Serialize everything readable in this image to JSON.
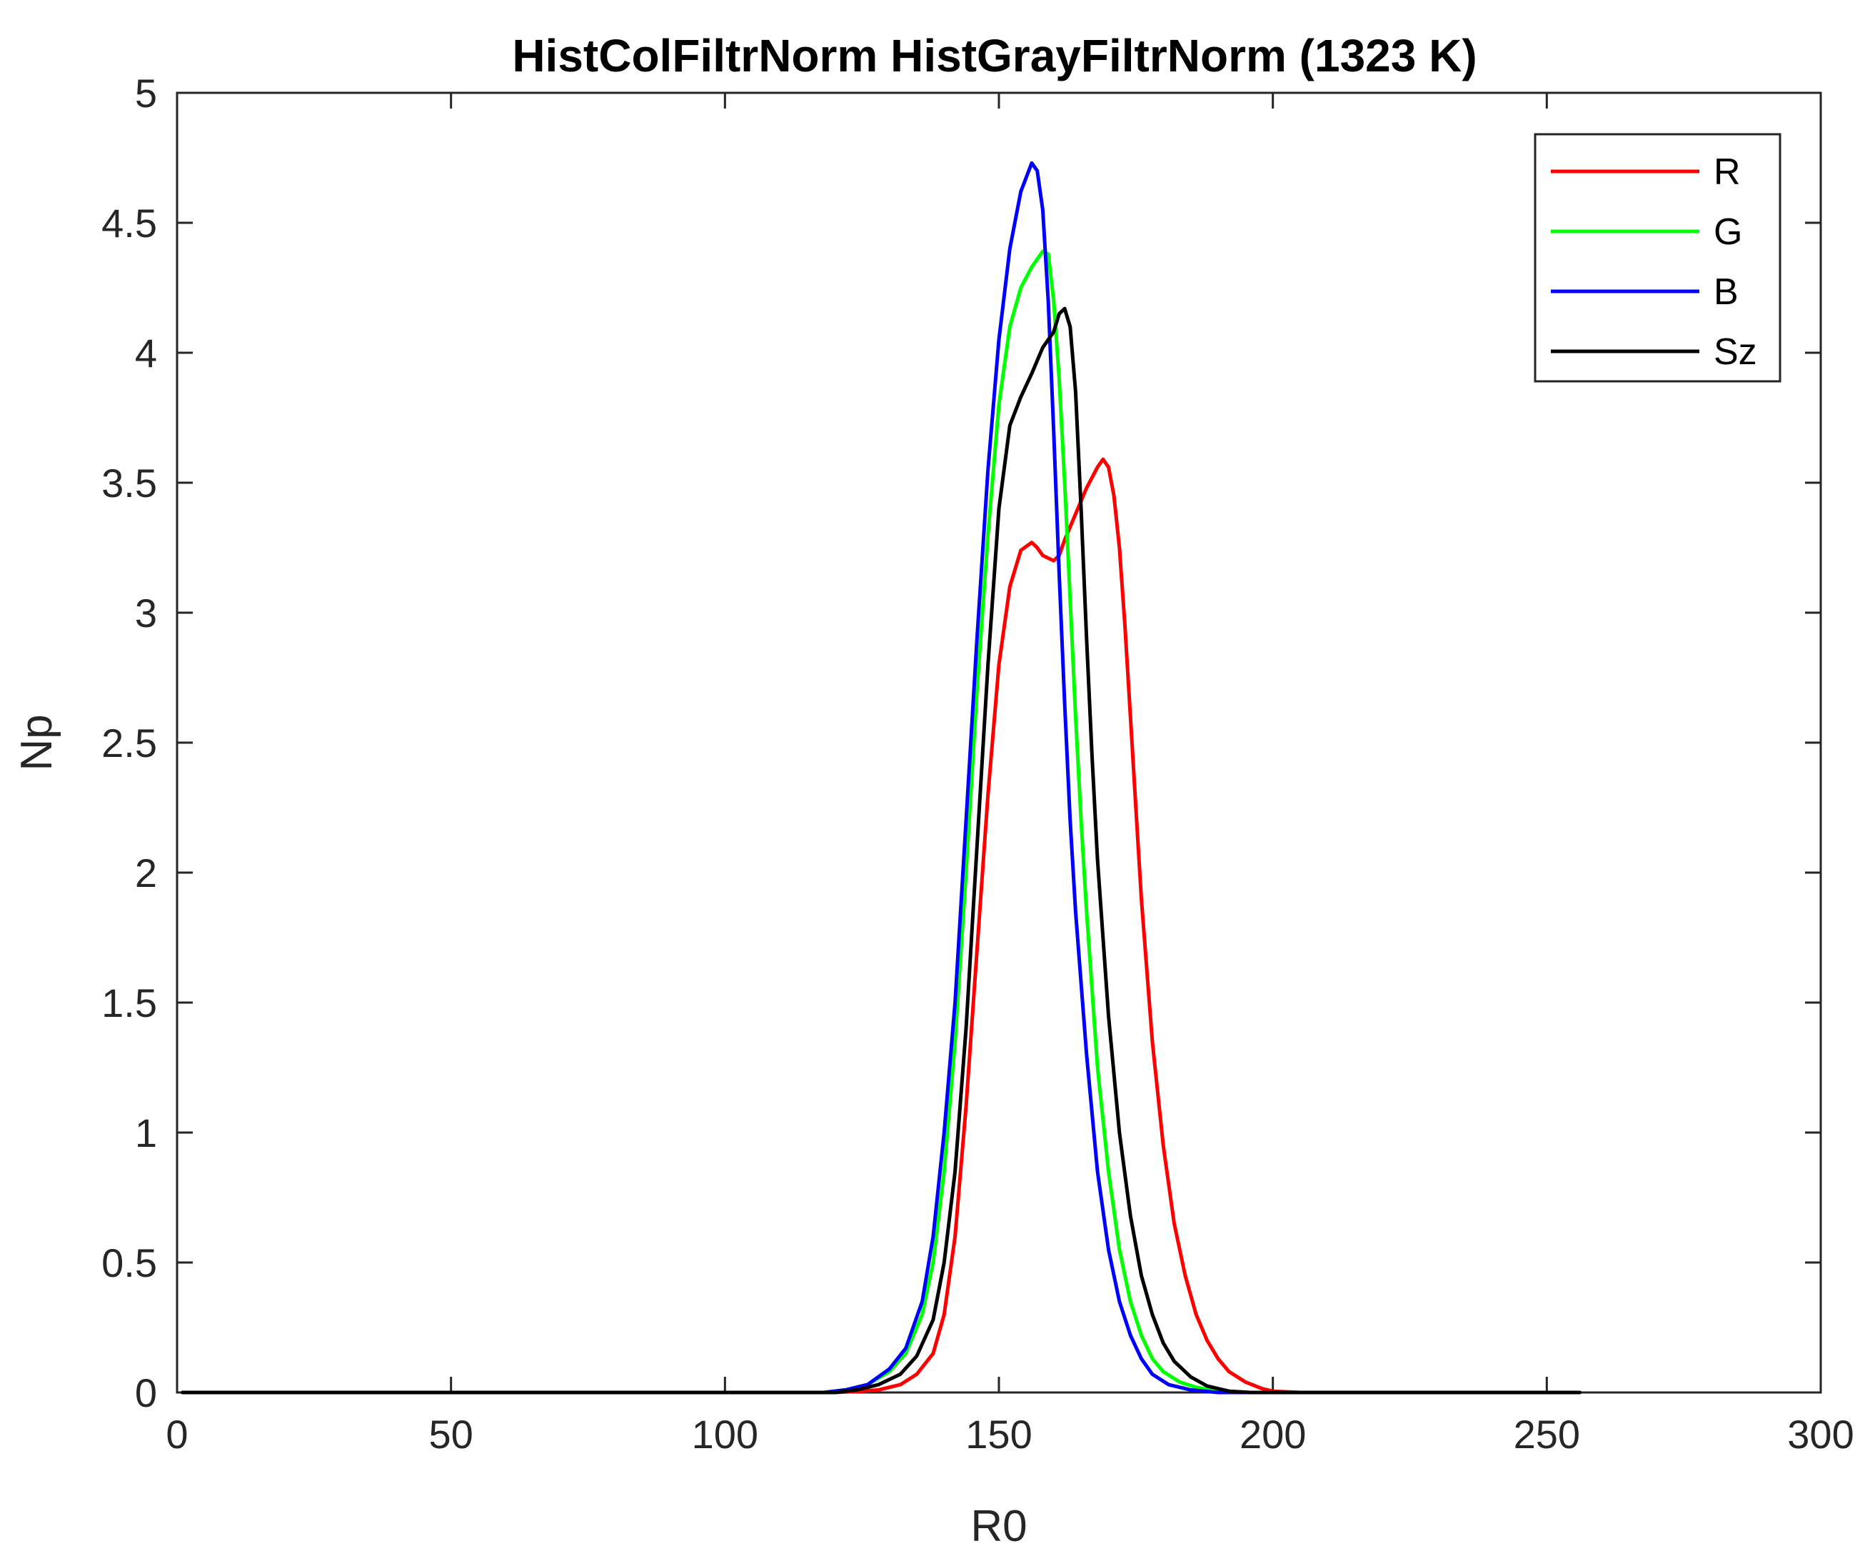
{
  "chart_data": {
    "type": "line",
    "title": "HistColFiltrNorm  HistGrayFiltrNorm (1323 K)",
    "xlabel": "R0",
    "ylabel": "Np",
    "xlim": [
      0,
      300
    ],
    "ylim": [
      0,
      5
    ],
    "xticks": [
      0,
      50,
      100,
      150,
      200,
      250,
      300
    ],
    "yticks": [
      0,
      0.5,
      1,
      1.5,
      2,
      2.5,
      3,
      3.5,
      4,
      4.5,
      5
    ],
    "xtick_labels": [
      "0",
      "50",
      "100",
      "150",
      "200",
      "250",
      "300"
    ],
    "ytick_labels": [
      "0",
      "0.5",
      "1",
      "1.5",
      "2",
      "2.5",
      "3",
      "3.5",
      "4",
      "4.5",
      "5"
    ],
    "grid": false,
    "legend_position": "top-right",
    "series": [
      {
        "name": "R",
        "color": "#ff0000",
        "points": [
          [
            1,
            0
          ],
          [
            120,
            0
          ],
          [
            125,
            0.005
          ],
          [
            128,
            0.01
          ],
          [
            132,
            0.03
          ],
          [
            135,
            0.07
          ],
          [
            138,
            0.15
          ],
          [
            140,
            0.3
          ],
          [
            142,
            0.6
          ],
          [
            144,
            1.1
          ],
          [
            146,
            1.7
          ],
          [
            148,
            2.3
          ],
          [
            150,
            2.8
          ],
          [
            152,
            3.1
          ],
          [
            154,
            3.24
          ],
          [
            156,
            3.27
          ],
          [
            157,
            3.25
          ],
          [
            158,
            3.22
          ],
          [
            159,
            3.21
          ],
          [
            160,
            3.2
          ],
          [
            161,
            3.22
          ],
          [
            162,
            3.28
          ],
          [
            163,
            3.33
          ],
          [
            164,
            3.38
          ],
          [
            165,
            3.43
          ],
          [
            166,
            3.48
          ],
          [
            168,
            3.56
          ],
          [
            169,
            3.59
          ],
          [
            170,
            3.56
          ],
          [
            171,
            3.45
          ],
          [
            172,
            3.25
          ],
          [
            173,
            2.95
          ],
          [
            174,
            2.6
          ],
          [
            175,
            2.25
          ],
          [
            176,
            1.9
          ],
          [
            178,
            1.35
          ],
          [
            180,
            0.95
          ],
          [
            182,
            0.65
          ],
          [
            184,
            0.45
          ],
          [
            186,
            0.3
          ],
          [
            188,
            0.2
          ],
          [
            190,
            0.13
          ],
          [
            192,
            0.08
          ],
          [
            195,
            0.04
          ],
          [
            198,
            0.015
          ],
          [
            200,
            0.005
          ],
          [
            205,
            0
          ],
          [
            256,
            0
          ]
        ]
      },
      {
        "name": "G",
        "color": "#00ff00",
        "points": [
          [
            1,
            0
          ],
          [
            118,
            0
          ],
          [
            122,
            0.01
          ],
          [
            126,
            0.03
          ],
          [
            130,
            0.08
          ],
          [
            133,
            0.15
          ],
          [
            136,
            0.3
          ],
          [
            138,
            0.5
          ],
          [
            140,
            0.85
          ],
          [
            142,
            1.35
          ],
          [
            144,
            2.0
          ],
          [
            146,
            2.7
          ],
          [
            148,
            3.3
          ],
          [
            150,
            3.8
          ],
          [
            152,
            4.1
          ],
          [
            154,
            4.25
          ],
          [
            156,
            4.33
          ],
          [
            158,
            4.39
          ],
          [
            159,
            4.38
          ],
          [
            160,
            4.2
          ],
          [
            161,
            3.9
          ],
          [
            162,
            3.5
          ],
          [
            163,
            3.05
          ],
          [
            164,
            2.6
          ],
          [
            165,
            2.2
          ],
          [
            166,
            1.85
          ],
          [
            168,
            1.25
          ],
          [
            170,
            0.85
          ],
          [
            172,
            0.55
          ],
          [
            174,
            0.35
          ],
          [
            176,
            0.22
          ],
          [
            178,
            0.13
          ],
          [
            180,
            0.08
          ],
          [
            183,
            0.04
          ],
          [
            186,
            0.02
          ],
          [
            190,
            0.005
          ],
          [
            195,
            0
          ],
          [
            256,
            0
          ]
        ]
      },
      {
        "name": "B",
        "color": "#0000ff",
        "points": [
          [
            1,
            0
          ],
          [
            118,
            0
          ],
          [
            122,
            0.01
          ],
          [
            126,
            0.03
          ],
          [
            130,
            0.09
          ],
          [
            133,
            0.17
          ],
          [
            136,
            0.35
          ],
          [
            138,
            0.6
          ],
          [
            140,
            1.0
          ],
          [
            142,
            1.5
          ],
          [
            144,
            2.2
          ],
          [
            146,
            2.9
          ],
          [
            148,
            3.55
          ],
          [
            150,
            4.05
          ],
          [
            152,
            4.4
          ],
          [
            154,
            4.62
          ],
          [
            156,
            4.73
          ],
          [
            157,
            4.7
          ],
          [
            158,
            4.55
          ],
          [
            159,
            4.2
          ],
          [
            160,
            3.7
          ],
          [
            161,
            3.15
          ],
          [
            162,
            2.65
          ],
          [
            163,
            2.2
          ],
          [
            164,
            1.85
          ],
          [
            166,
            1.3
          ],
          [
            168,
            0.85
          ],
          [
            170,
            0.55
          ],
          [
            172,
            0.35
          ],
          [
            174,
            0.22
          ],
          [
            176,
            0.13
          ],
          [
            178,
            0.07
          ],
          [
            181,
            0.03
          ],
          [
            185,
            0.01
          ],
          [
            190,
            0
          ],
          [
            256,
            0
          ]
        ]
      },
      {
        "name": "Sz",
        "color": "#000000",
        "points": [
          [
            1,
            0
          ],
          [
            120,
            0
          ],
          [
            124,
            0.01
          ],
          [
            128,
            0.03
          ],
          [
            132,
            0.07
          ],
          [
            135,
            0.14
          ],
          [
            138,
            0.28
          ],
          [
            140,
            0.5
          ],
          [
            142,
            0.85
          ],
          [
            144,
            1.4
          ],
          [
            146,
            2.1
          ],
          [
            148,
            2.8
          ],
          [
            150,
            3.4
          ],
          [
            152,
            3.72
          ],
          [
            154,
            3.83
          ],
          [
            156,
            3.92
          ],
          [
            158,
            4.02
          ],
          [
            160,
            4.08
          ],
          [
            161,
            4.15
          ],
          [
            162,
            4.17
          ],
          [
            163,
            4.1
          ],
          [
            164,
            3.85
          ],
          [
            165,
            3.4
          ],
          [
            166,
            2.9
          ],
          [
            167,
            2.45
          ],
          [
            168,
            2.05
          ],
          [
            170,
            1.45
          ],
          [
            172,
            1.0
          ],
          [
            174,
            0.68
          ],
          [
            176,
            0.45
          ],
          [
            178,
            0.3
          ],
          [
            180,
            0.19
          ],
          [
            182,
            0.12
          ],
          [
            185,
            0.06
          ],
          [
            188,
            0.025
          ],
          [
            192,
            0.005
          ],
          [
            196,
            0
          ],
          [
            256,
            0
          ]
        ]
      }
    ]
  }
}
